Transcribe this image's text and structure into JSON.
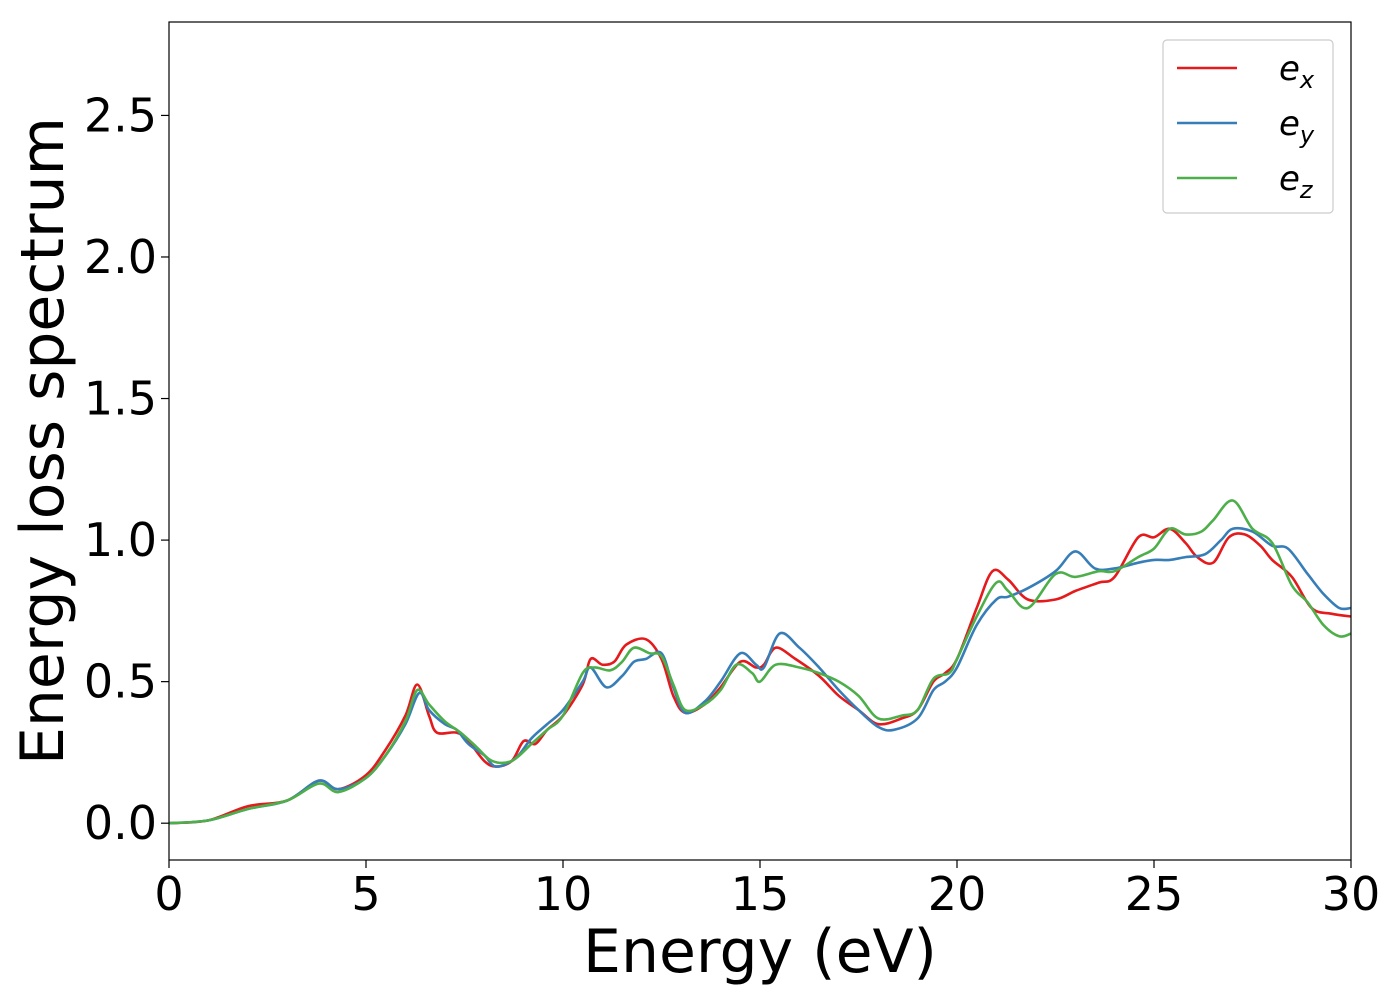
{
  "chart_data": {
    "type": "line",
    "title": "",
    "xlabel": "Energy (eV)",
    "ylabel": "Energy loss spectrum",
    "xlim": [
      0,
      30
    ],
    "ylim": [
      -0.13,
      2.83
    ],
    "xticks": [
      0,
      5,
      10,
      15,
      20,
      25,
      30
    ],
    "xtick_labels": [
      "0",
      "5",
      "10",
      "15",
      "20",
      "25",
      "30"
    ],
    "yticks": [
      0.0,
      0.5,
      1.0,
      1.5,
      2.0,
      2.5
    ],
    "ytick_labels": [
      "0.0",
      "0.5",
      "1.0",
      "1.5",
      "2.0",
      "2.5"
    ],
    "grid": false,
    "legend_position": "top-right",
    "series": [
      {
        "name": "e",
        "subscript": "x",
        "color": "#e41a1c",
        "points": [
          [
            0,
            0
          ],
          [
            1,
            0.01
          ],
          [
            2,
            0.06
          ],
          [
            3,
            0.08
          ],
          [
            3.8,
            0.15
          ],
          [
            4.3,
            0.12
          ],
          [
            5,
            0.17
          ],
          [
            5.5,
            0.26
          ],
          [
            6,
            0.38
          ],
          [
            6.3,
            0.49
          ],
          [
            6.6,
            0.38
          ],
          [
            6.8,
            0.32
          ],
          [
            7.3,
            0.32
          ],
          [
            7.6,
            0.29
          ],
          [
            8,
            0.22
          ],
          [
            8.3,
            0.2
          ],
          [
            8.7,
            0.22
          ],
          [
            9,
            0.29
          ],
          [
            9.3,
            0.28
          ],
          [
            9.6,
            0.33
          ],
          [
            10,
            0.38
          ],
          [
            10.5,
            0.49
          ],
          [
            10.7,
            0.58
          ],
          [
            11,
            0.56
          ],
          [
            11.3,
            0.57
          ],
          [
            11.6,
            0.63
          ],
          [
            12.1,
            0.65
          ],
          [
            12.5,
            0.58
          ],
          [
            12.8,
            0.45
          ],
          [
            13.1,
            0.39
          ],
          [
            13.6,
            0.42
          ],
          [
            14,
            0.48
          ],
          [
            14.5,
            0.57
          ],
          [
            14.9,
            0.55
          ],
          [
            15.1,
            0.56
          ],
          [
            15.4,
            0.62
          ],
          [
            15.9,
            0.58
          ],
          [
            16.5,
            0.52
          ],
          [
            17,
            0.45
          ],
          [
            17.5,
            0.4
          ],
          [
            18,
            0.35
          ],
          [
            18.6,
            0.37
          ],
          [
            19,
            0.4
          ],
          [
            19.4,
            0.5
          ],
          [
            19.7,
            0.53
          ],
          [
            20,
            0.58
          ],
          [
            20.5,
            0.76
          ],
          [
            20.9,
            0.89
          ],
          [
            21.3,
            0.86
          ],
          [
            21.8,
            0.79
          ],
          [
            22.5,
            0.79
          ],
          [
            23,
            0.82
          ],
          [
            23.6,
            0.85
          ],
          [
            24,
            0.87
          ],
          [
            24.6,
            1.01
          ],
          [
            25,
            1.01
          ],
          [
            25.4,
            1.04
          ],
          [
            25.8,
            0.99
          ],
          [
            26.1,
            0.94
          ],
          [
            26.5,
            0.92
          ],
          [
            26.9,
            1.01
          ],
          [
            27.3,
            1.02
          ],
          [
            27.7,
            0.98
          ],
          [
            28,
            0.93
          ],
          [
            28.5,
            0.87
          ],
          [
            29,
            0.76
          ],
          [
            29.5,
            0.74
          ],
          [
            30,
            0.73
          ]
        ]
      },
      {
        "name": "e",
        "subscript": "y",
        "color": "#377eb8",
        "points": [
          [
            0,
            0
          ],
          [
            1,
            0.01
          ],
          [
            2,
            0.05
          ],
          [
            3,
            0.08
          ],
          [
            3.8,
            0.15
          ],
          [
            4.3,
            0.12
          ],
          [
            5,
            0.16
          ],
          [
            5.5,
            0.24
          ],
          [
            6,
            0.35
          ],
          [
            6.35,
            0.46
          ],
          [
            6.6,
            0.4
          ],
          [
            7,
            0.35
          ],
          [
            7.3,
            0.33
          ],
          [
            7.6,
            0.28
          ],
          [
            8,
            0.24
          ],
          [
            8.3,
            0.2
          ],
          [
            8.8,
            0.23
          ],
          [
            9.2,
            0.3
          ],
          [
            9.6,
            0.35
          ],
          [
            10,
            0.4
          ],
          [
            10.5,
            0.5
          ],
          [
            10.7,
            0.55
          ],
          [
            11.1,
            0.48
          ],
          [
            11.5,
            0.52
          ],
          [
            11.8,
            0.57
          ],
          [
            12.1,
            0.58
          ],
          [
            12.5,
            0.6
          ],
          [
            12.8,
            0.48
          ],
          [
            13.1,
            0.39
          ],
          [
            13.6,
            0.43
          ],
          [
            14,
            0.5
          ],
          [
            14.5,
            0.6
          ],
          [
            14.9,
            0.56
          ],
          [
            15.1,
            0.55
          ],
          [
            15.5,
            0.67
          ],
          [
            16,
            0.62
          ],
          [
            16.5,
            0.55
          ],
          [
            17,
            0.47
          ],
          [
            17.5,
            0.4
          ],
          [
            18,
            0.34
          ],
          [
            18.4,
            0.33
          ],
          [
            19,
            0.37
          ],
          [
            19.4,
            0.47
          ],
          [
            19.7,
            0.5
          ],
          [
            20,
            0.55
          ],
          [
            20.5,
            0.7
          ],
          [
            21,
            0.79
          ],
          [
            21.3,
            0.8
          ],
          [
            21.8,
            0.83
          ],
          [
            22.5,
            0.89
          ],
          [
            23,
            0.96
          ],
          [
            23.5,
            0.9
          ],
          [
            24,
            0.9
          ],
          [
            24.6,
            0.92
          ],
          [
            25,
            0.93
          ],
          [
            25.4,
            0.93
          ],
          [
            25.8,
            0.94
          ],
          [
            26.3,
            0.95
          ],
          [
            26.7,
            1.0
          ],
          [
            27,
            1.04
          ],
          [
            27.5,
            1.03
          ],
          [
            28,
            0.98
          ],
          [
            28.4,
            0.97
          ],
          [
            28.9,
            0.88
          ],
          [
            29.3,
            0.81
          ],
          [
            29.7,
            0.76
          ],
          [
            30,
            0.76
          ]
        ]
      },
      {
        "name": "e",
        "subscript": "z",
        "color": "#4daf4a",
        "points": [
          [
            0,
            0
          ],
          [
            1,
            0.01
          ],
          [
            2,
            0.05
          ],
          [
            3,
            0.08
          ],
          [
            3.8,
            0.14
          ],
          [
            4.3,
            0.11
          ],
          [
            5,
            0.16
          ],
          [
            5.5,
            0.24
          ],
          [
            6,
            0.36
          ],
          [
            6.3,
            0.47
          ],
          [
            6.6,
            0.42
          ],
          [
            7,
            0.36
          ],
          [
            7.4,
            0.32
          ],
          [
            7.8,
            0.27
          ],
          [
            8.2,
            0.22
          ],
          [
            8.7,
            0.22
          ],
          [
            9.2,
            0.28
          ],
          [
            9.6,
            0.33
          ],
          [
            10,
            0.38
          ],
          [
            10.5,
            0.53
          ],
          [
            10.8,
            0.55
          ],
          [
            11.2,
            0.54
          ],
          [
            11.5,
            0.57
          ],
          [
            11.8,
            0.62
          ],
          [
            12.2,
            0.6
          ],
          [
            12.5,
            0.59
          ],
          [
            12.8,
            0.49
          ],
          [
            13.1,
            0.4
          ],
          [
            13.6,
            0.42
          ],
          [
            14,
            0.47
          ],
          [
            14.4,
            0.56
          ],
          [
            14.8,
            0.53
          ],
          [
            15,
            0.5
          ],
          [
            15.4,
            0.56
          ],
          [
            16,
            0.55
          ],
          [
            16.5,
            0.53
          ],
          [
            17,
            0.5
          ],
          [
            17.5,
            0.45
          ],
          [
            18,
            0.37
          ],
          [
            18.6,
            0.38
          ],
          [
            19,
            0.4
          ],
          [
            19.4,
            0.51
          ],
          [
            19.8,
            0.53
          ],
          [
            20,
            0.58
          ],
          [
            20.5,
            0.73
          ],
          [
            21,
            0.85
          ],
          [
            21.3,
            0.82
          ],
          [
            21.8,
            0.76
          ],
          [
            22.5,
            0.88
          ],
          [
            23,
            0.87
          ],
          [
            23.6,
            0.89
          ],
          [
            24,
            0.89
          ],
          [
            24.6,
            0.94
          ],
          [
            25,
            0.97
          ],
          [
            25.4,
            1.04
          ],
          [
            25.8,
            1.02
          ],
          [
            26.2,
            1.03
          ],
          [
            26.5,
            1.07
          ],
          [
            27,
            1.14
          ],
          [
            27.5,
            1.04
          ],
          [
            28,
            0.99
          ],
          [
            28.5,
            0.84
          ],
          [
            28.9,
            0.78
          ],
          [
            29.3,
            0.7
          ],
          [
            29.7,
            0.66
          ],
          [
            30,
            0.67
          ]
        ]
      }
    ]
  }
}
